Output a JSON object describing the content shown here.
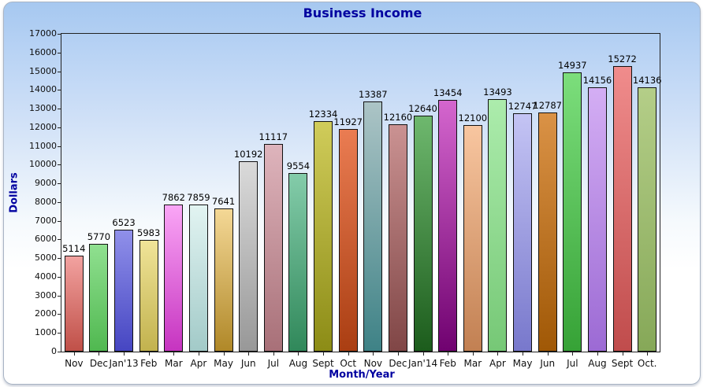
{
  "chart_data": {
    "type": "bar",
    "title": "Business Income",
    "xlabel": "Month/Year",
    "ylabel": "Dollars",
    "ylim": [
      0,
      17000
    ],
    "ytick_step": 1000,
    "grid": false,
    "legend": "none",
    "value_labels_shown": true,
    "categories": [
      "Nov",
      "Dec",
      "Jan'13",
      "Feb",
      "Mar",
      "Apr",
      "May",
      "Jun",
      "Jul",
      "Aug",
      "Sept",
      "Oct",
      "Nov",
      "Dec",
      "Jan'14",
      "Feb",
      "Mar",
      "Apr",
      "May",
      "Jun",
      "Jul",
      "Aug",
      "Sept",
      "Oct."
    ],
    "values": [
      5114,
      5770,
      6523,
      5983,
      7862,
      7859,
      7641,
      10192,
      11117,
      9554,
      12334,
      11927,
      13387,
      12160,
      12640,
      13454,
      12100,
      13493,
      12747,
      12787,
      14937,
      14156,
      15272,
      14136
    ],
    "bar_colors": [
      {
        "top": "#F2A2A0",
        "bottom": "#C05048"
      },
      {
        "top": "#90E090",
        "bottom": "#50B850"
      },
      {
        "top": "#9090EA",
        "bottom": "#4646C2"
      },
      {
        "top": "#F0E498",
        "bottom": "#C2B24E"
      },
      {
        "top": "#FAA6F6",
        "bottom": "#C634C0"
      },
      {
        "top": "#E2F4F2",
        "bottom": "#A2CAC8"
      },
      {
        "top": "#F4D896",
        "bottom": "#B08828"
      },
      {
        "top": "#DADADA",
        "bottom": "#989898"
      },
      {
        "top": "#DEB4BC",
        "bottom": "#A87078"
      },
      {
        "top": "#84CCAA",
        "bottom": "#30885A"
      },
      {
        "top": "#D0CC5A",
        "bottom": "#8C8C16"
      },
      {
        "top": "#EA7C52",
        "bottom": "#AA3E12"
      },
      {
        "top": "#ACC4C6",
        "bottom": "#3E8286"
      },
      {
        "top": "#CA9292",
        "bottom": "#804646"
      },
      {
        "top": "#6EB86E",
        "bottom": "#1C5C1C"
      },
      {
        "top": "#D466CE",
        "bottom": "#700270"
      },
      {
        "top": "#F8C6A0",
        "bottom": "#C28052"
      },
      {
        "top": "#ACECAC",
        "bottom": "#76C876"
      },
      {
        "top": "#C4C4F4",
        "bottom": "#7878CC"
      },
      {
        "top": "#DA9246",
        "bottom": "#A05806"
      },
      {
        "top": "#7CDE7C",
        "bottom": "#36A236"
      },
      {
        "top": "#D4AEF4",
        "bottom": "#9C6AD4"
      },
      {
        "top": "#F08C8C",
        "bottom": "#C04C4C"
      },
      {
        "top": "#B4CE88",
        "bottom": "#86A858"
      }
    ]
  },
  "colors": {
    "title_text": "#0000A0",
    "axis_title_text": "#0000A0",
    "tick_label_text": "#101010",
    "plot_border": "#222222",
    "panel_border": "#A9B4C4",
    "panel_gradient_top": "#A6C8F0",
    "panel_gradient_bottom": "#FFFFFF"
  }
}
